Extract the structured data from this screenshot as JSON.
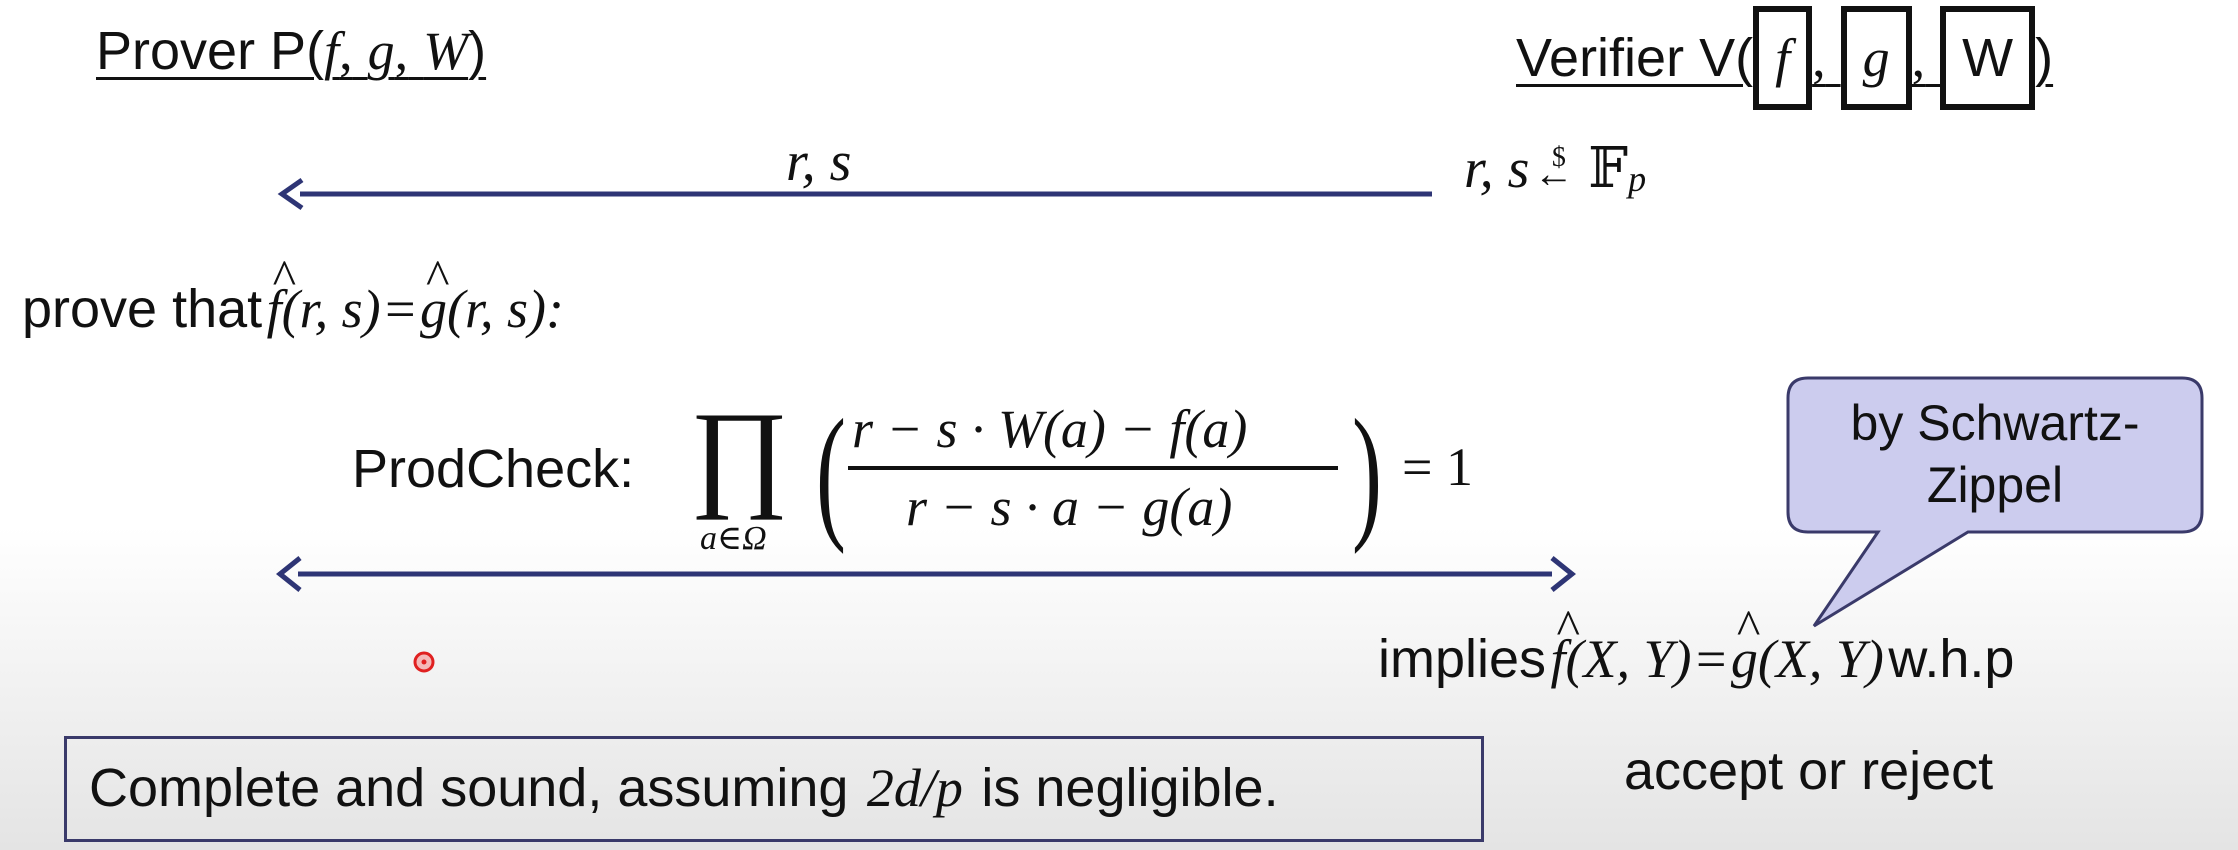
{
  "prover": {
    "prefix": "Prover P(",
    "f": "f",
    "comma1": ",",
    "g": "g",
    "comma2": ",",
    "w": "W",
    "suffix": ")"
  },
  "verifier": {
    "prefix": "Verifier V(",
    "f": "f",
    "comma1": ",",
    "g": "g",
    "comma2": ",",
    "w": "W",
    "suffix": ")"
  },
  "challenge": {
    "label": "r, s",
    "sample_lhs": "r, s",
    "sample_arrow": "←",
    "sample_dollar": "$",
    "field": "𝔽",
    "field_sub": "p"
  },
  "prove": {
    "text": "prove that",
    "lhs_f": "f",
    "lhs_args": "(r, s)",
    "eq": "=",
    "rhs_g": "g",
    "rhs_args": "(r, s):"
  },
  "prodcheck": {
    "label": "ProdCheck:",
    "product_symbol": "∏",
    "subscript": "a∈Ω",
    "numerator": "r − s · W(a) − f(a)",
    "denominator": "r − s · a − g(a)",
    "rhs": "= 1"
  },
  "callout": {
    "line1": "by Schwartz-",
    "line2": "Zippel"
  },
  "implies": {
    "prefix": "implies",
    "lhs_f": "f",
    "lhs_args": "(X, Y)",
    "eq": "=",
    "rhs_g": "g",
    "rhs_args": "(X, Y)",
    "suffix": "w.h.p"
  },
  "decision": "accept or reject",
  "conclusion": {
    "prefix": "Complete and sound,  assuming",
    "fraction": "2d/p",
    "suffix": "is negligible."
  },
  "colors": {
    "arrow": "#2e3575",
    "callout_fill": "#ccccee",
    "callout_stroke": "#3a3a6a"
  }
}
